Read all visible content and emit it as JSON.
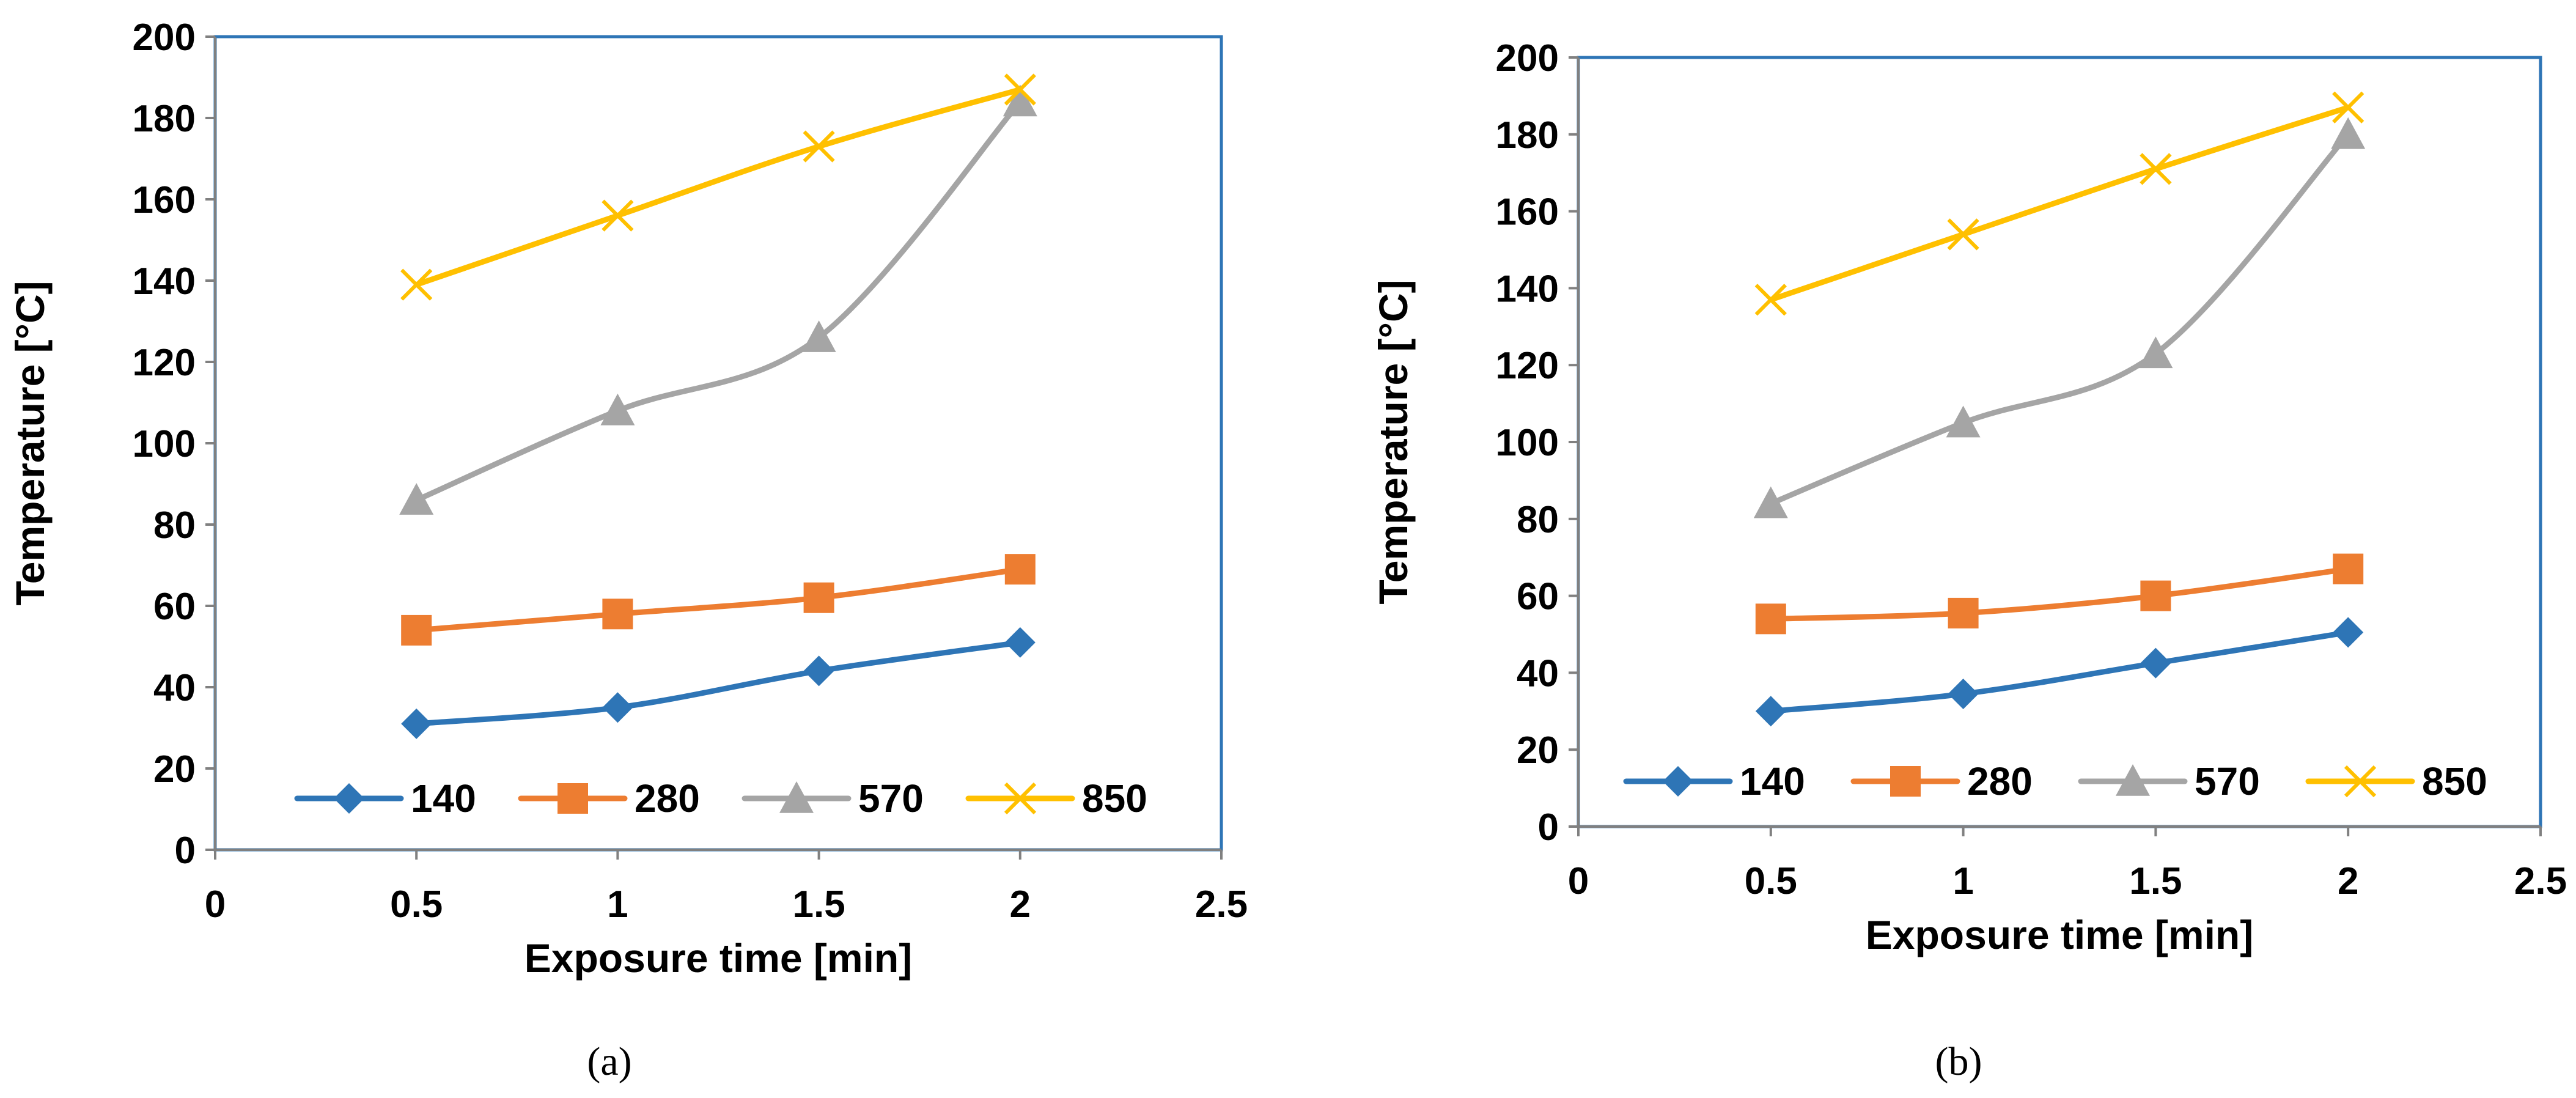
{
  "chart_data": [
    {
      "type": "line",
      "caption": "(a)",
      "xlabel": "Exposure time [min]",
      "ylabel": "Temperature [°C]",
      "xlim": [
        0,
        2.5
      ],
      "ylim": [
        0,
        200
      ],
      "xticks": [
        0,
        0.5,
        1,
        1.5,
        2,
        2.5
      ],
      "xtick_labels": [
        "0",
        "0.5",
        "1",
        "1.5",
        "2",
        "2.5"
      ],
      "yticks": [
        0,
        20,
        40,
        60,
        80,
        100,
        120,
        140,
        160,
        180,
        200
      ],
      "ytick_labels": [
        "0",
        "20",
        "40",
        "60",
        "80",
        "100",
        "120",
        "140",
        "160",
        "180",
        "200"
      ],
      "x": [
        0.5,
        1,
        1.5,
        2
      ],
      "grid": false,
      "legend_position": "bottom-inside",
      "series": [
        {
          "name": "140",
          "values": [
            31,
            35,
            44,
            51
          ],
          "color": "#2E75B6",
          "marker": "diamond"
        },
        {
          "name": "280",
          "values": [
            54,
            58,
            62,
            69
          ],
          "color": "#ED7D31",
          "marker": "square"
        },
        {
          "name": "570",
          "values": [
            86,
            108,
            126,
            184
          ],
          "color": "#A5A5A5",
          "marker": "triangle"
        },
        {
          "name": "850",
          "values": [
            139,
            156,
            173,
            187
          ],
          "color": "#FFC000",
          "marker": "x"
        }
      ]
    },
    {
      "type": "line",
      "caption": "(b)",
      "xlabel": "Exposure time [min]",
      "ylabel": "Temperature [°C]",
      "xlim": [
        0,
        2.5
      ],
      "ylim": [
        0,
        200
      ],
      "xticks": [
        0,
        0.5,
        1,
        1.5,
        2,
        2.5
      ],
      "xtick_labels": [
        "0",
        "0.5",
        "1",
        "1.5",
        "2",
        "2.5"
      ],
      "yticks": [
        0,
        20,
        40,
        60,
        80,
        100,
        120,
        140,
        160,
        180,
        200
      ],
      "ytick_labels": [
        "0",
        "20",
        "40",
        "60",
        "80",
        "100",
        "120",
        "140",
        "160",
        "180",
        "200"
      ],
      "x": [
        0.5,
        1,
        1.5,
        2
      ],
      "grid": false,
      "legend_position": "bottom-inside",
      "series": [
        {
          "name": "140",
          "values": [
            30,
            34.5,
            42.5,
            50.5
          ],
          "color": "#2E75B6",
          "marker": "diamond"
        },
        {
          "name": "280",
          "values": [
            54,
            55.5,
            60,
            67
          ],
          "color": "#ED7D31",
          "marker": "square"
        },
        {
          "name": "570",
          "values": [
            84,
            105,
            123,
            180
          ],
          "color": "#A5A5A5",
          "marker": "triangle"
        },
        {
          "name": "850",
          "values": [
            137,
            154,
            171,
            187
          ],
          "color": "#FFC000",
          "marker": "x"
        }
      ]
    }
  ],
  "colors": {
    "frame": "#2E75B6",
    "axis": "#000000"
  }
}
